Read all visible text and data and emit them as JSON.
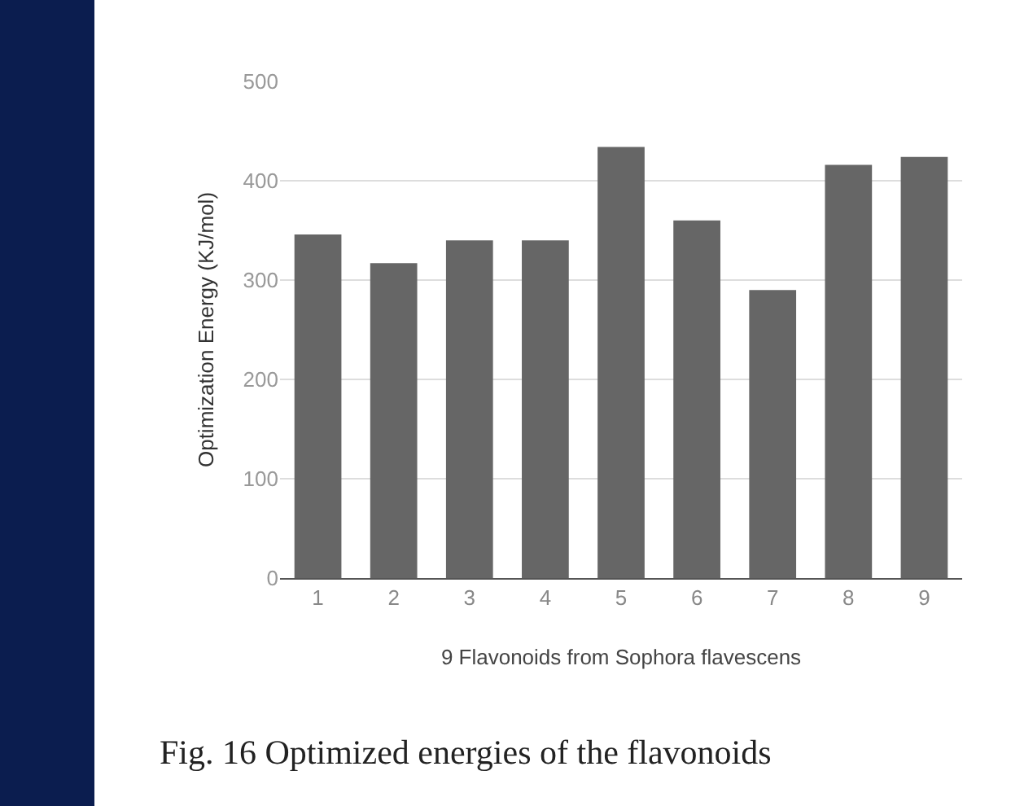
{
  "chart_data": {
    "type": "bar",
    "categories": [
      "1",
      "2",
      "3",
      "4",
      "5",
      "6",
      "7",
      "8",
      "9"
    ],
    "values": [
      346,
      317,
      340,
      340,
      434,
      360,
      290,
      416,
      424
    ],
    "color": "#666666",
    "xlabel": "9 Flavonoids from Sophora flavescens",
    "ylabel": "Optimization Energy (KJ/mol)",
    "ylim": [
      0,
      500
    ],
    "yticks": [
      0,
      100,
      200,
      300,
      400,
      500
    ],
    "grid": "y",
    "annotations": [
      "Fig. 16  Optimized energies of the flavonoids"
    ]
  }
}
